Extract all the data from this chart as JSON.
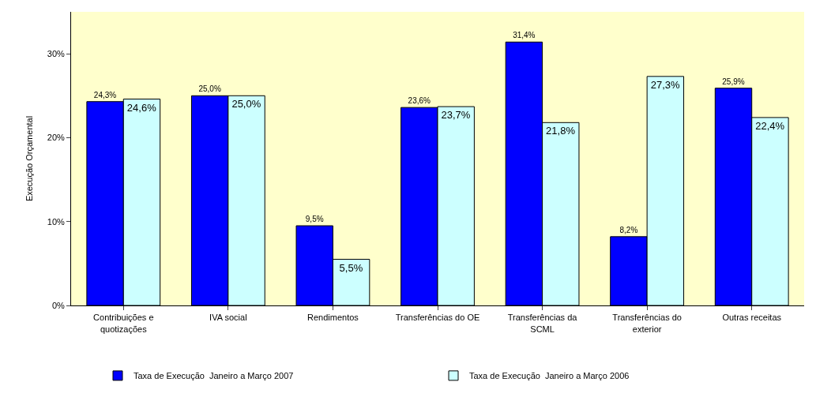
{
  "chart_data": {
    "type": "bar",
    "ylabel": "Execução Orçamental",
    "categories": [
      "Contribuições e quotizações",
      "IVA social",
      "Rendimentos",
      "Transferências do OE",
      "Transferências da SCML",
      "Transferências do exterior",
      "Outras receitas"
    ],
    "series": [
      {
        "name": "Taxa de Execução  Janeiro a Março 2007",
        "color": "#0000ff",
        "values": [
          24.3,
          25.0,
          9.5,
          23.6,
          31.4,
          8.2,
          25.9
        ],
        "value_labels": [
          "24,3%",
          "25,0%",
          "9,5%",
          "23,6%",
          "31,4%",
          "8,2%",
          "25,9%"
        ]
      },
      {
        "name": "Taxa de Execução  Janeiro a Março 2006",
        "color": "#ccffff",
        "values": [
          24.6,
          25.0,
          5.5,
          23.7,
          21.8,
          27.3,
          22.4
        ],
        "value_labels": [
          "24,6%",
          "25,0%",
          "5,5%",
          "23,7%",
          "21,8%",
          "27,3%",
          "22,4%"
        ]
      }
    ],
    "ylim": [
      0,
      35
    ],
    "yticks": [
      {
        "value": 0,
        "label": "0%"
      },
      {
        "value": 10,
        "label": "10%"
      },
      {
        "value": 20,
        "label": "20%"
      },
      {
        "value": 30,
        "label": "30%"
      }
    ],
    "grid": false,
    "legend": "bottom"
  }
}
